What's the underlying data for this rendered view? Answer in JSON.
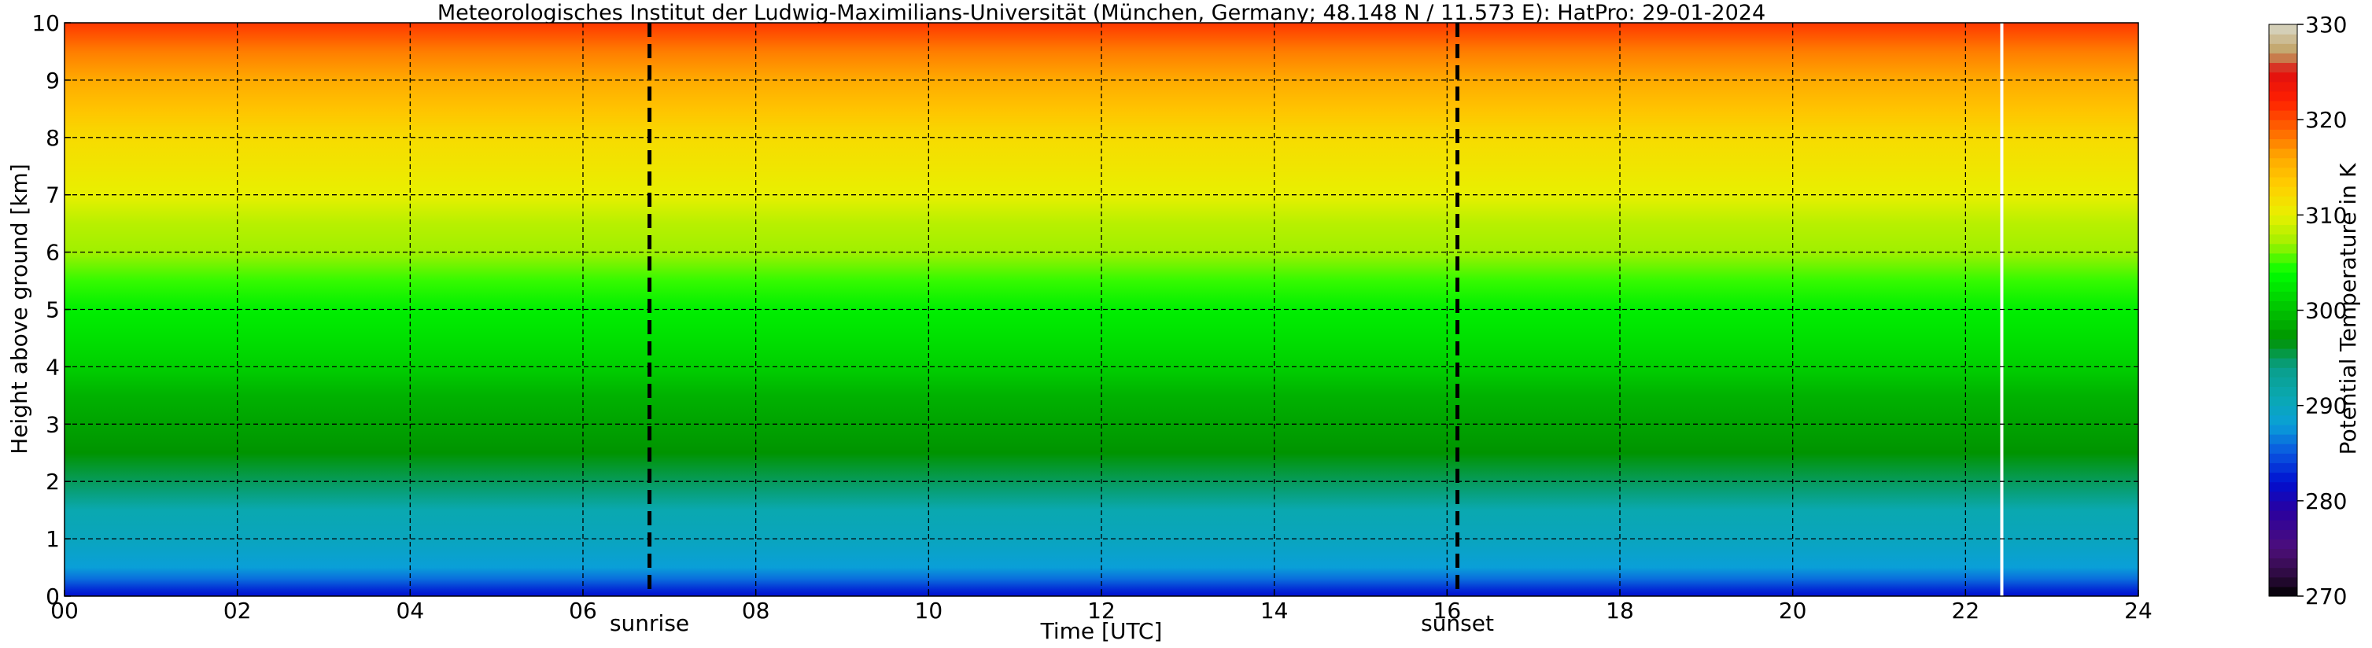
{
  "chart_data": {
    "type": "heatmap",
    "title": "Meteorologisches Institut der Ludwig-Maximilians-Universität (München, Germany; 48.148 N / 11.573 E):    HatPro: 29-01-2024",
    "xlabel": "Time [UTC]",
    "ylabel": "Height above ground [km]",
    "xlim": [
      0,
      24
    ],
    "ylim": [
      0,
      10
    ],
    "x_ticks": [
      "00",
      "02",
      "04",
      "06",
      "08",
      "10",
      "12",
      "14",
      "16",
      "18",
      "20",
      "22",
      "24"
    ],
    "y_ticks": [
      "0",
      "1",
      "2",
      "3",
      "4",
      "5",
      "6",
      "7",
      "8",
      "9",
      "10"
    ],
    "grid": true,
    "colorbar": {
      "label": "Potential Temperature in K",
      "range": [
        270,
        330
      ],
      "ticks": [
        "270",
        "280",
        "290",
        "300",
        "310",
        "320",
        "330"
      ]
    },
    "annotations": [
      {
        "label": "sunrise",
        "x": 6.77
      },
      {
        "label": "sunset",
        "x": 16.12
      }
    ],
    "data_gap_x": 22.42,
    "profile": {
      "height_km": [
        0.0,
        0.1,
        0.3,
        0.5,
        1.0,
        1.5,
        2.0,
        2.5,
        3.0,
        3.5,
        4.0,
        4.5,
        5.0,
        5.5,
        6.0,
        6.5,
        7.0,
        7.5,
        8.0,
        8.5,
        9.0,
        9.5,
        10.0
      ],
      "potential_temperature_K": [
        282,
        283,
        286,
        288,
        290,
        291,
        295,
        297,
        298,
        299,
        301,
        302,
        303,
        305,
        307,
        308,
        310,
        311,
        312,
        314,
        316,
        318,
        321
      ]
    }
  }
}
